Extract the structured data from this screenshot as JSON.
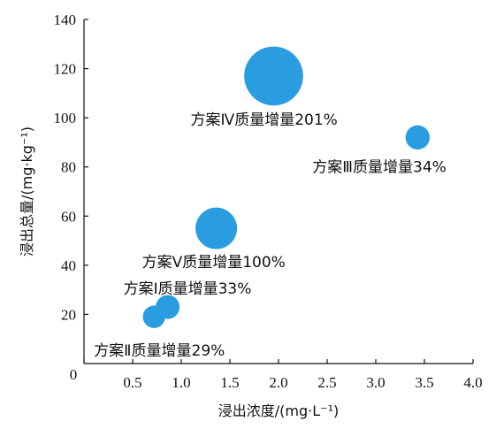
{
  "chart_data": {
    "type": "scatter",
    "title": "",
    "xlabel": "浸出浓度/(mg·L⁻¹)",
    "ylabel": "浸出总量/(mg·kg⁻¹)",
    "xlim": [
      0,
      4.0
    ],
    "ylim": [
      0,
      140
    ],
    "x_ticks": [
      "0",
      "0.5",
      "1.0",
      "1.5",
      "2.0",
      "2.5",
      "3.0",
      "3.5",
      "4.0"
    ],
    "x_tick_values": [
      0,
      0.5,
      1.0,
      1.5,
      2.0,
      2.5,
      3.0,
      3.5,
      4.0
    ],
    "y_ticks": [
      "20",
      "40",
      "60",
      "80",
      "100",
      "120",
      "140"
    ],
    "y_tick_values": [
      20,
      40,
      60,
      80,
      100,
      120,
      140
    ],
    "grid": false,
    "bubble_color": "#2a9de0",
    "points": [
      {
        "label": "方案Ⅱ质量增量29%",
        "x": 0.72,
        "y": 19,
        "mass_increase_pct": 29
      },
      {
        "label": "方案Ⅰ质量增量33%",
        "x": 0.86,
        "y": 23,
        "mass_increase_pct": 33
      },
      {
        "label": "方案Ⅴ质量增量100%",
        "x": 1.36,
        "y": 55,
        "mass_increase_pct": 100
      },
      {
        "label": "方案Ⅳ质量增量201%",
        "x": 1.95,
        "y": 117,
        "mass_increase_pct": 201
      },
      {
        "label": "方案Ⅲ质量增量34%",
        "x": 3.43,
        "y": 92,
        "mass_increase_pct": 34
      }
    ]
  }
}
